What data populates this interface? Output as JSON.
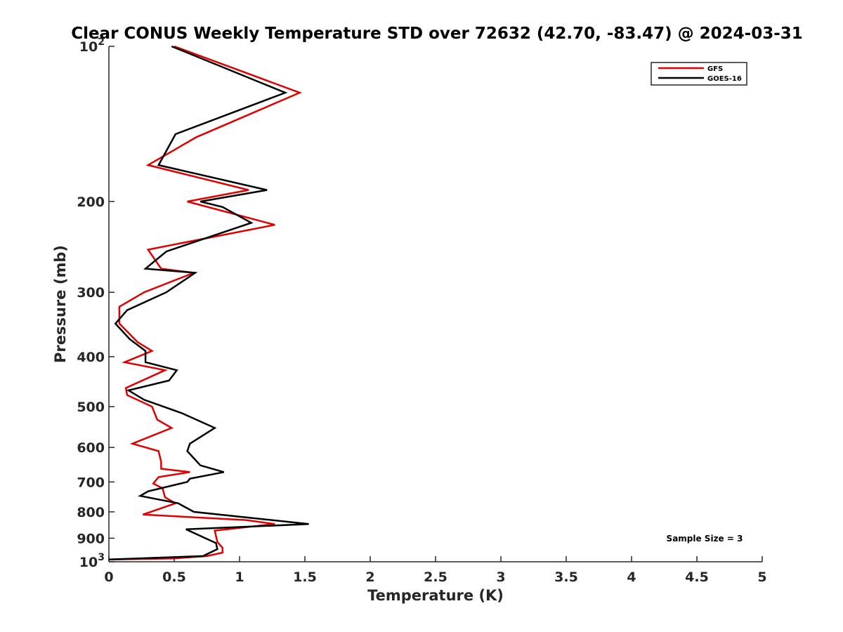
{
  "chart_data": {
    "type": "line",
    "title": "Clear CONUS Weekly Temperature STD over 72632 (42.70, -83.47) @ 2024-03-31",
    "xlabel": "Temperature (K)",
    "ylabel": "Pressure (mb)",
    "xlim": [
      0,
      5
    ],
    "ylim": [
      1000,
      100
    ],
    "y_scale": "log",
    "x_ticks": [
      0,
      0.5,
      1,
      1.5,
      2,
      2.5,
      3,
      3.5,
      4,
      4.5,
      5
    ],
    "x_tick_labels": [
      "0",
      "0.5",
      "1",
      "1.5",
      "2",
      "2.5",
      "3",
      "3.5",
      "4",
      "4.5",
      "5"
    ],
    "y_ticks": [
      {
        "value": 100,
        "base": "10",
        "exp": "2"
      },
      {
        "value": 200,
        "label": "200"
      },
      {
        "value": 300,
        "label": "300"
      },
      {
        "value": 400,
        "label": "400"
      },
      {
        "value": 500,
        "label": "500"
      },
      {
        "value": 600,
        "label": "600"
      },
      {
        "value": 700,
        "label": "700"
      },
      {
        "value": 800,
        "label": "800"
      },
      {
        "value": 900,
        "label": "900"
      },
      {
        "value": 1000,
        "base": "10",
        "exp": "3"
      }
    ],
    "grid": false,
    "legend_position": "top-right",
    "series": [
      {
        "name": "GFS",
        "color": "#e00000",
        "points": [
          [
            0.5,
            100
          ],
          [
            1.46,
            123
          ],
          [
            0.67,
            150
          ],
          [
            0.3,
            170
          ],
          [
            1.07,
            190
          ],
          [
            0.6,
            200
          ],
          [
            1.27,
            222
          ],
          [
            0.3,
            248
          ],
          [
            0.4,
            270
          ],
          [
            0.65,
            275
          ],
          [
            0.27,
            300
          ],
          [
            0.08,
            320
          ],
          [
            0.08,
            345
          ],
          [
            0.22,
            375
          ],
          [
            0.33,
            390
          ],
          [
            0.12,
            410
          ],
          [
            0.43,
            425
          ],
          [
            0.13,
            460
          ],
          [
            0.14,
            475
          ],
          [
            0.33,
            500
          ],
          [
            0.37,
            530
          ],
          [
            0.48,
            550
          ],
          [
            0.18,
            590
          ],
          [
            0.38,
            610
          ],
          [
            0.4,
            640
          ],
          [
            0.4,
            660
          ],
          [
            0.62,
            670
          ],
          [
            0.38,
            685
          ],
          [
            0.34,
            705
          ],
          [
            0.41,
            720
          ],
          [
            0.43,
            750
          ],
          [
            0.51,
            770
          ],
          [
            0.26,
            810
          ],
          [
            1.05,
            830
          ],
          [
            1.27,
            845
          ],
          [
            0.81,
            870
          ],
          [
            0.83,
            915
          ],
          [
            0.87,
            940
          ],
          [
            0.87,
            960
          ],
          [
            0.75,
            975
          ],
          [
            0.5,
            985
          ],
          [
            0.0,
            990
          ]
        ]
      },
      {
        "name": "GOES-16",
        "color": "#000000",
        "points": [
          [
            0.48,
            100
          ],
          [
            1.35,
            123
          ],
          [
            0.51,
            148
          ],
          [
            0.38,
            170
          ],
          [
            1.21,
            190
          ],
          [
            0.7,
            200
          ],
          [
            0.87,
            205
          ],
          [
            1.09,
            220
          ],
          [
            0.44,
            250
          ],
          [
            0.28,
            270
          ],
          [
            0.66,
            275
          ],
          [
            0.44,
            300
          ],
          [
            0.14,
            325
          ],
          [
            0.05,
            345
          ],
          [
            0.16,
            370
          ],
          [
            0.28,
            390
          ],
          [
            0.28,
            410
          ],
          [
            0.52,
            425
          ],
          [
            0.46,
            445
          ],
          [
            0.15,
            465
          ],
          [
            0.27,
            485
          ],
          [
            0.56,
            515
          ],
          [
            0.81,
            550
          ],
          [
            0.62,
            590
          ],
          [
            0.6,
            610
          ],
          [
            0.7,
            650
          ],
          [
            0.88,
            670
          ],
          [
            0.62,
            690
          ],
          [
            0.6,
            700
          ],
          [
            0.3,
            730
          ],
          [
            0.24,
            745
          ],
          [
            0.53,
            770
          ],
          [
            0.65,
            800
          ],
          [
            1.15,
            825
          ],
          [
            1.53,
            845
          ],
          [
            0.59,
            865
          ],
          [
            0.82,
            920
          ],
          [
            0.83,
            945
          ],
          [
            0.72,
            975
          ],
          [
            0.0,
            990
          ]
        ]
      }
    ],
    "annotations": [
      "Sample Size = 3"
    ]
  }
}
